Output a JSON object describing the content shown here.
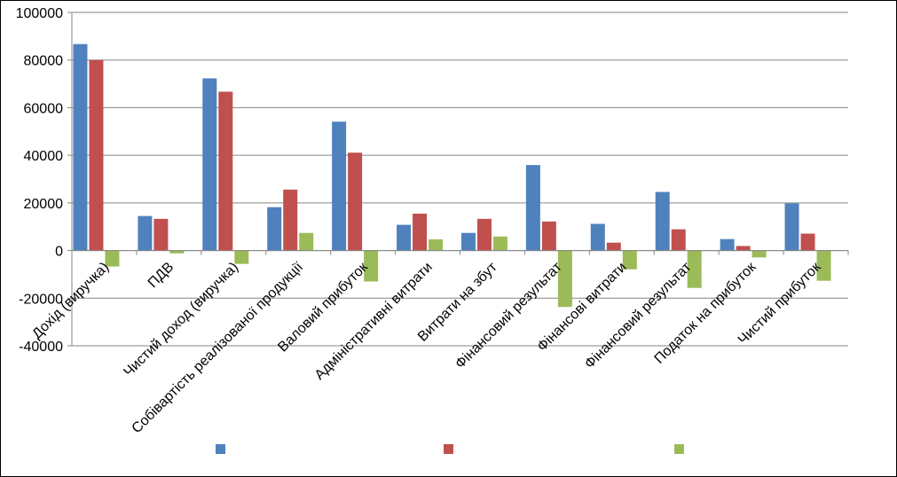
{
  "chart_data": {
    "type": "bar",
    "categories": [
      "Дохід (виручка)",
      "ПДВ",
      "Чистий доход (виручка)",
      "Собівартість реалізованої продукції",
      "Валовий прибуток",
      "Адміністративні витрати",
      "Витрати на збут",
      "Фінансовий результат",
      "Фінансові витрати",
      "Фінансовий результат",
      "Податок на прибуток",
      "Чистий прибуток"
    ],
    "series": [
      {
        "values": [
          86700,
          14500,
          72300,
          18200,
          54100,
          10800,
          7400,
          35900,
          11200,
          24600,
          4800,
          19800
        ]
      },
      {
        "values": [
          80000,
          13300,
          66700,
          25600,
          41100,
          15500,
          13300,
          12200,
          3300,
          8900,
          1900,
          7100
        ]
      },
      {
        "values": [
          -6700,
          -1200,
          -5600,
          7400,
          -13000,
          4700,
          5900,
          -23700,
          -7900,
          -15700,
          -2900,
          -12700
        ]
      }
    ],
    "series_colors": [
      "#4F81BD",
      "#C0504D",
      "#9BBB59"
    ],
    "y_ticks": [
      "100000",
      "80000",
      "60000",
      "40000",
      "20000",
      "0",
      "-20000",
      "-40000"
    ],
    "ylim": [
      -40000,
      100000
    ],
    "title": "",
    "xlabel": "",
    "ylabel": "",
    "grid": true,
    "legend_position": "bottom"
  }
}
